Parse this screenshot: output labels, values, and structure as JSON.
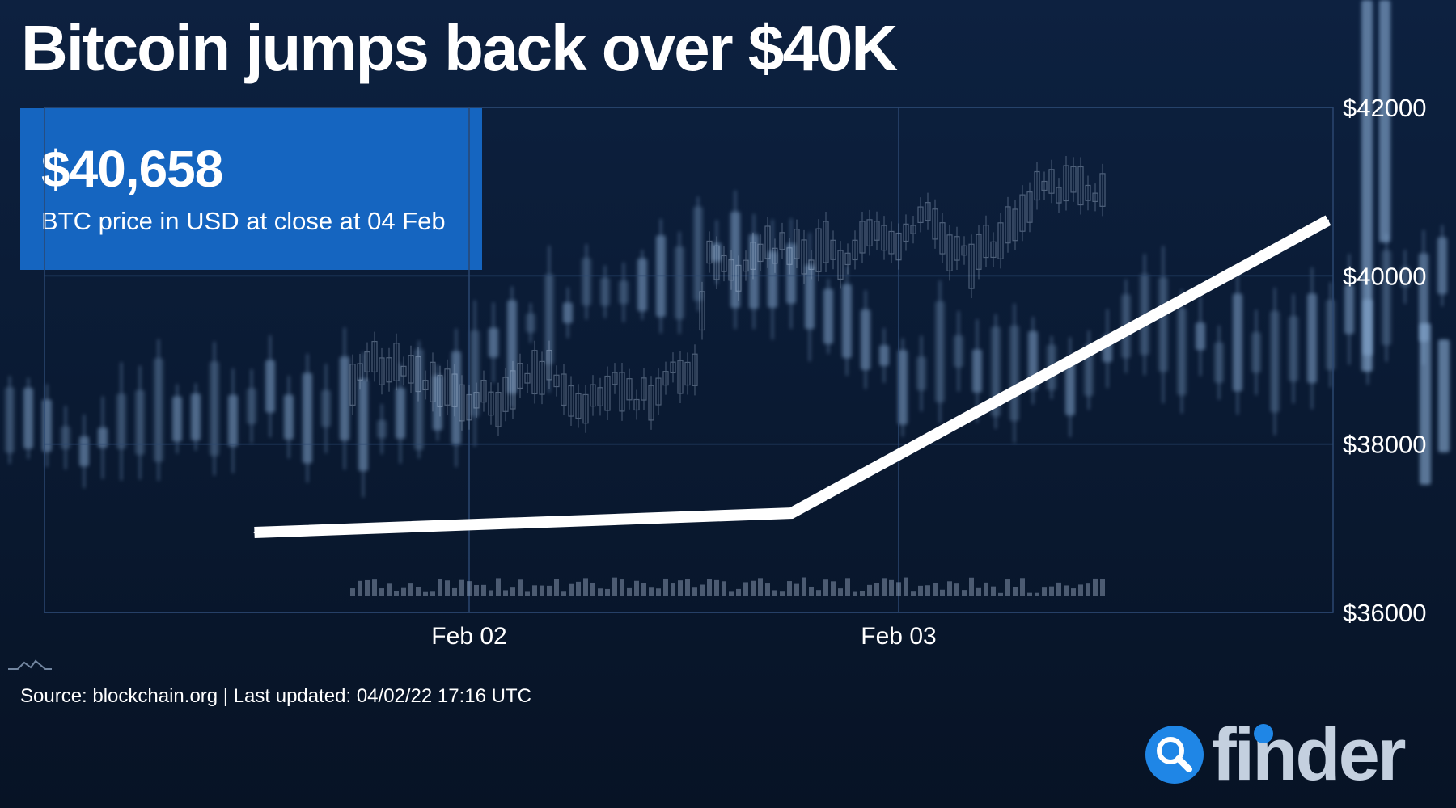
{
  "title": "Bitcoin jumps back over $40K",
  "price_card": {
    "value": "$40,658",
    "caption": "BTC price in USD at close at 04 Feb"
  },
  "source": "Source: blockchain.org | Last updated: 04/02/22 17:16 UTC",
  "logo": {
    "text": "finder",
    "icon": "search-icon"
  },
  "colors": {
    "background": "#0a1a33",
    "card": "#1565c0",
    "line": "#ffffff",
    "brand": "#1f86e6"
  },
  "chart_data": {
    "type": "line",
    "title": "Bitcoin jumps back over $40K",
    "xlabel": "",
    "ylabel": "",
    "x_ticks": [
      "Feb 02",
      "Feb 03"
    ],
    "y_ticks": [
      "$36000",
      "$38000",
      "$40000",
      "$42000"
    ],
    "ylim": [
      36000,
      42000
    ],
    "grid": true,
    "legend": "none",
    "y_axis_position": "right",
    "series": [
      {
        "x": [
          "2022-02-01 12:00",
          "2022-02-02 18:00",
          "2022-02-04 00:00"
        ],
        "values": [
          36950,
          37180,
          40660
        ]
      }
    ]
  }
}
